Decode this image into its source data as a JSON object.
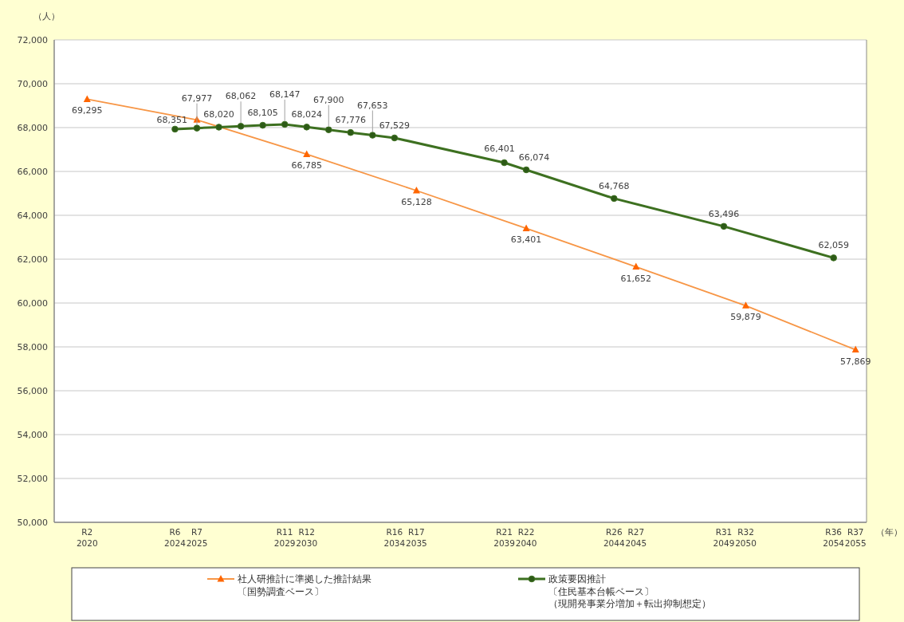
{
  "chart_data": {
    "type": "line",
    "ylabel": "（人）",
    "xlabel": "（年）",
    "categories": [
      null,
      "R2 2020",
      null,
      null,
      null,
      "R6 2024",
      "R7 2025",
      null,
      null,
      null,
      "R11 2029",
      "R12 2030",
      null,
      null,
      null,
      "R16 2034",
      "R17 2035",
      null,
      null,
      null,
      "R21 2039",
      "R22 2040",
      null,
      null,
      null,
      "R26 2044",
      "R27 2045",
      null,
      null,
      null,
      "R31 2049",
      "R32 2050",
      null,
      null,
      null,
      "R36 2054",
      "R37 2055"
    ],
    "ylim": [
      50000,
      72000
    ],
    "yticks": [
      {
        "value": 50000,
        "label": "50,000"
      },
      {
        "value": 52000,
        "label": "52,000"
      },
      {
        "value": 54000,
        "label": "54,000"
      },
      {
        "value": 56000,
        "label": "56,000"
      },
      {
        "value": 58000,
        "label": "58,000"
      },
      {
        "value": 60000,
        "label": "60,000"
      },
      {
        "value": 62000,
        "label": "62,000"
      },
      {
        "value": 64000,
        "label": "64,000"
      },
      {
        "value": 66000,
        "label": "66,000"
      },
      {
        "value": 68000,
        "label": "68,000"
      },
      {
        "value": 70000,
        "label": "70,000"
      },
      {
        "value": 72000,
        "label": "72,000"
      }
    ],
    "grid": "y",
    "legend": "bottom",
    "series": [
      {
        "name": "社人研推計に準拠した推計結果〔国勢調査ベース〕",
        "color": "#f79646",
        "marker": "triangle",
        "values": [
          null,
          69295,
          null,
          null,
          null,
          null,
          68351,
          null,
          null,
          null,
          null,
          66785,
          null,
          null,
          null,
          null,
          65128,
          null,
          null,
          null,
          null,
          63401,
          null,
          null,
          null,
          null,
          61652,
          null,
          null,
          null,
          null,
          59879,
          null,
          null,
          null,
          null,
          57869
        ],
        "value_labels": [
          null,
          "69,295",
          null,
          null,
          null,
          null,
          "68,351",
          null,
          null,
          null,
          null,
          "66,785",
          null,
          null,
          null,
          null,
          "65,128",
          null,
          null,
          null,
          null,
          "63,401",
          null,
          null,
          null,
          null,
          "61,652",
          null,
          null,
          null,
          null,
          "59,879",
          null,
          null,
          null,
          null,
          "57,869"
        ]
      },
      {
        "name": "政策要因推計〔住民基本台帳ベース〕（現開発事業分増加＋転出抑制想定）",
        "color": "#3d7020",
        "marker": "circle",
        "values": [
          null,
          null,
          null,
          null,
          null,
          67930,
          67977,
          68020,
          68062,
          68105,
          68147,
          68024,
          67900,
          67776,
          67653,
          67529,
          null,
          null,
          null,
          null,
          66401,
          66074,
          null,
          null,
          null,
          64768,
          null,
          null,
          null,
          null,
          63496,
          null,
          null,
          null,
          null,
          62059,
          null
        ],
        "value_labels": [
          null,
          null,
          null,
          null,
          null,
          null,
          "67,977",
          "68,020",
          "68,062",
          "68,105",
          "68,147",
          "68,024",
          "67,900",
          "67,776",
          "67,653",
          "67,529",
          null,
          null,
          null,
          null,
          "66,401",
          "66,074",
          null,
          null,
          null,
          "64,768",
          null,
          null,
          null,
          null,
          "63,496",
          null,
          null,
          null,
          null,
          "62,059",
          null
        ]
      }
    ]
  }
}
